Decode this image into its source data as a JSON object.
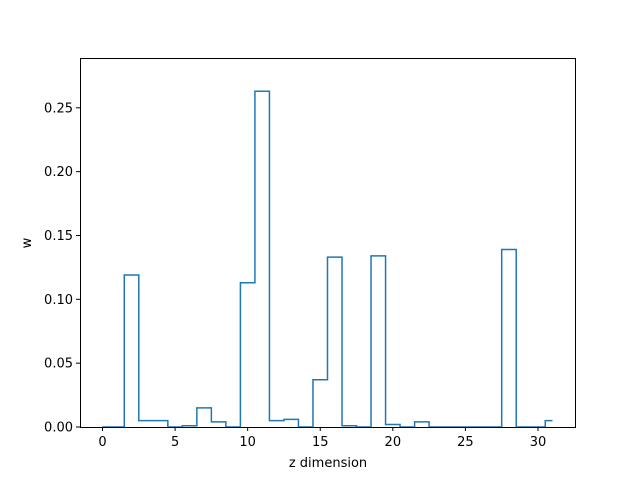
{
  "chart_data": {
    "type": "line",
    "drawstyle": "steps-mid",
    "title": "",
    "xlabel": "z dimension",
    "ylabel": "w",
    "xlim": [
      -1.55,
      32.55
    ],
    "ylim": [
      0,
      0.289
    ],
    "x_ticks": [
      0,
      5,
      10,
      15,
      20,
      25,
      30
    ],
    "y_ticks": [
      0.0,
      0.05,
      0.1,
      0.15,
      0.2,
      0.25
    ],
    "y_tick_labels": [
      "0.00",
      "0.05",
      "0.10",
      "0.15",
      "0.20",
      "0.25"
    ],
    "grid": false,
    "legend": "none",
    "series": [
      {
        "color": "#1f77b4",
        "x": [
          0,
          1,
          2,
          3,
          4,
          5,
          6,
          7,
          8,
          9,
          10,
          11,
          12,
          13,
          14,
          15,
          16,
          17,
          18,
          19,
          20,
          21,
          22,
          23,
          24,
          25,
          26,
          27,
          28,
          29,
          30,
          31
        ],
        "values": [
          0.0,
          0.0,
          0.119,
          0.005,
          0.005,
          0.0,
          0.001,
          0.015,
          0.004,
          0.0,
          0.113,
          0.263,
          0.005,
          0.006,
          0.0,
          0.037,
          0.133,
          0.001,
          0.0,
          0.134,
          0.002,
          0.0,
          0.004,
          0.0,
          0.0,
          0.0,
          0.0,
          0.0,
          0.139,
          0.0,
          0.0,
          0.005
        ]
      }
    ]
  }
}
